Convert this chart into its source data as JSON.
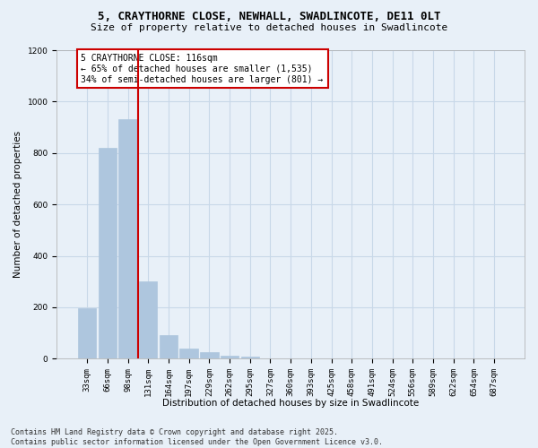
{
  "title_line1": "5, CRAYTHORNE CLOSE, NEWHALL, SWADLINCOTE, DE11 0LT",
  "title_line2": "Size of property relative to detached houses in Swadlincote",
  "xlabel": "Distribution of detached houses by size in Swadlincote",
  "ylabel": "Number of detached properties",
  "bar_values": [
    197,
    820,
    930,
    300,
    90,
    38,
    25,
    12,
    7,
    0,
    0,
    0,
    0,
    0,
    0,
    0,
    0,
    0,
    0,
    0,
    0
  ],
  "bar_labels": [
    "33sqm",
    "66sqm",
    "98sqm",
    "131sqm",
    "164sqm",
    "197sqm",
    "229sqm",
    "262sqm",
    "295sqm",
    "327sqm",
    "360sqm",
    "393sqm",
    "425sqm",
    "458sqm",
    "491sqm",
    "524sqm",
    "556sqm",
    "589sqm",
    "622sqm",
    "654sqm",
    "687sqm"
  ],
  "bar_color": "#aec6de",
  "bar_edge_color": "#aec6de",
  "grid_color": "#c8d8e8",
  "bg_color": "#e8f0f8",
  "red_line_x": 2.5,
  "red_line_color": "#cc0000",
  "annotation_text": "5 CRAYTHORNE CLOSE: 116sqm\n← 65% of detached houses are smaller (1,535)\n34% of semi-detached houses are larger (801) →",
  "annotation_box_color": "#ffffff",
  "annotation_border_color": "#cc0000",
  "ylim": [
    0,
    1200
  ],
  "yticks": [
    0,
    200,
    400,
    600,
    800,
    1000,
    1200
  ],
  "footer_line1": "Contains HM Land Registry data © Crown copyright and database right 2025.",
  "footer_line2": "Contains public sector information licensed under the Open Government Licence v3.0.",
  "title_fontsize": 9,
  "subtitle_fontsize": 8,
  "axis_label_fontsize": 7.5,
  "tick_fontsize": 6.5,
  "annotation_fontsize": 7,
  "footer_fontsize": 6
}
